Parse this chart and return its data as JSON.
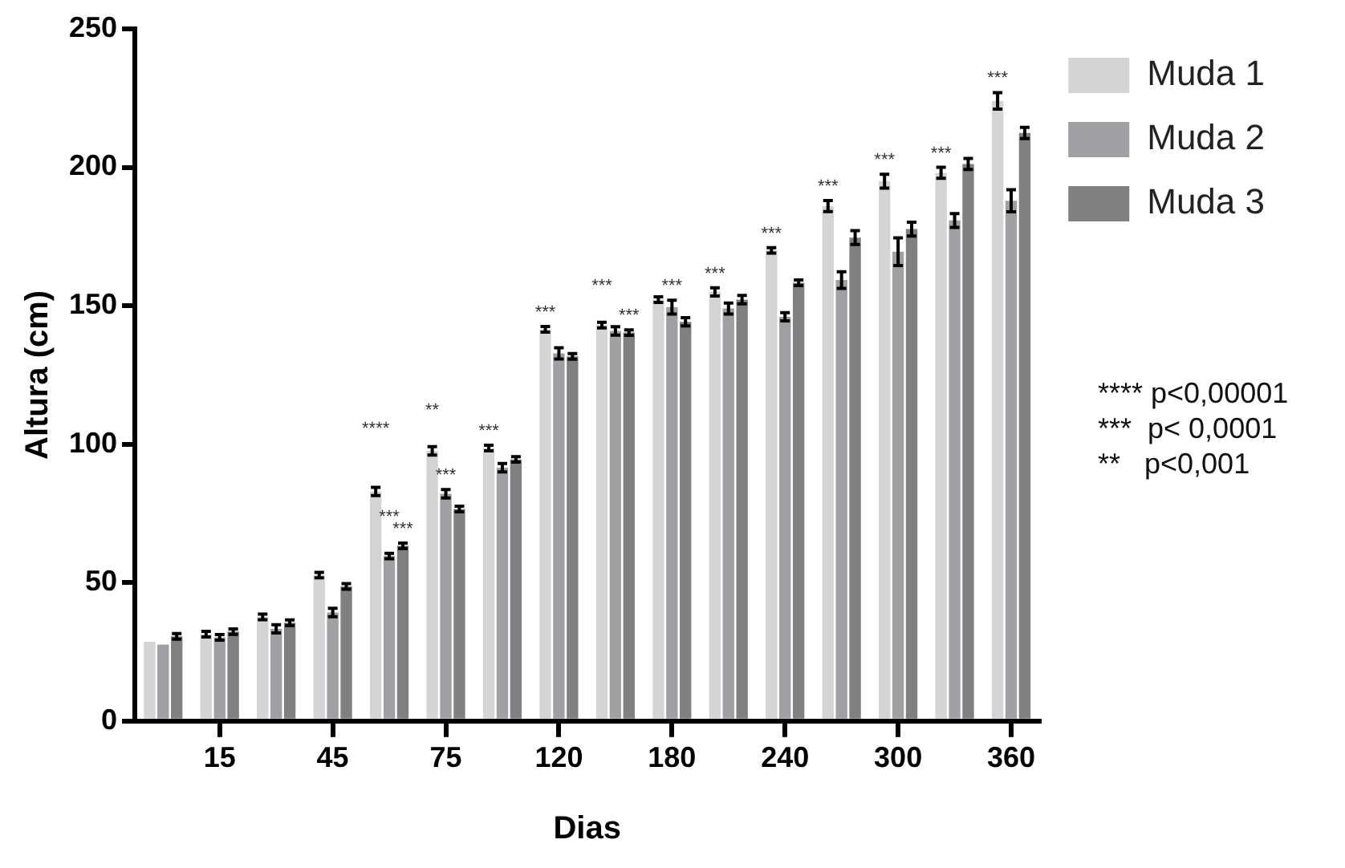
{
  "chart_data": {
    "type": "bar",
    "xlabel": "Dias",
    "ylabel": "Altura (cm)",
    "categories": [
      null,
      "15",
      null,
      "45",
      null,
      "75",
      null,
      "120",
      null,
      "180",
      null,
      "240",
      null,
      "300",
      null,
      "360"
    ],
    "series": [
      {
        "name": "Muda 1",
        "color": "#d4d4d4",
        "values": [
          28.6,
          31.4,
          37.6,
          52.7,
          82.9,
          97.6,
          98.6,
          141.5,
          143,
          152.2,
          155,
          170,
          186,
          195,
          198,
          224
        ],
        "errors": [
          null,
          1,
          1,
          1,
          1.5,
          1.5,
          1,
          1,
          1,
          1,
          1.5,
          1,
          2,
          2.5,
          2,
          3
        ],
        "value_labels": [
          null,
          null,
          null,
          null,
          "****",
          "**",
          "***",
          "***",
          "***",
          null,
          "***",
          "***",
          "***",
          "***",
          "***",
          "***"
        ]
      },
      {
        "name": "Muda 2",
        "color": "#a0a0a4",
        "values": [
          27.6,
          30.2,
          33.3,
          39.2,
          59.6,
          82.1,
          91.5,
          132.8,
          140.9,
          149.5,
          149,
          146,
          159.3,
          169.5,
          180.8,
          187.9
        ],
        "errors": [
          null,
          1,
          1.5,
          1.5,
          1,
          1.5,
          1.5,
          2,
          1.5,
          2.5,
          2,
          1.5,
          3,
          5,
          2.5,
          4
        ],
        "value_labels": [
          null,
          null,
          null,
          null,
          "***",
          "***",
          null,
          null,
          null,
          "***",
          null,
          null,
          null,
          null,
          null,
          null
        ]
      },
      {
        "name": "Muda 3",
        "color": "#808080",
        "values": [
          30.6,
          32.3,
          35.5,
          48.6,
          63.3,
          76.6,
          94.5,
          131.7,
          140.3,
          144.2,
          152.2,
          158.3,
          174.6,
          177.7,
          201.2,
          212.4
        ],
        "errors": [
          1,
          1,
          1,
          1,
          1,
          1,
          1,
          1,
          1,
          1.5,
          1.5,
          1,
          2.5,
          2.5,
          2,
          2
        ],
        "value_labels": [
          null,
          null,
          null,
          null,
          "***",
          null,
          null,
          null,
          "***",
          null,
          null,
          null,
          null,
          null,
          null,
          null
        ]
      }
    ],
    "ylim": [
      0,
      250
    ],
    "yticks": [
      0,
      50,
      100,
      150,
      200,
      250
    ],
    "grid": false,
    "legend": "top right",
    "annotations": [
      "**** p<0,00001",
      "***  p< 0,0001",
      "**   p<0,001"
    ]
  }
}
